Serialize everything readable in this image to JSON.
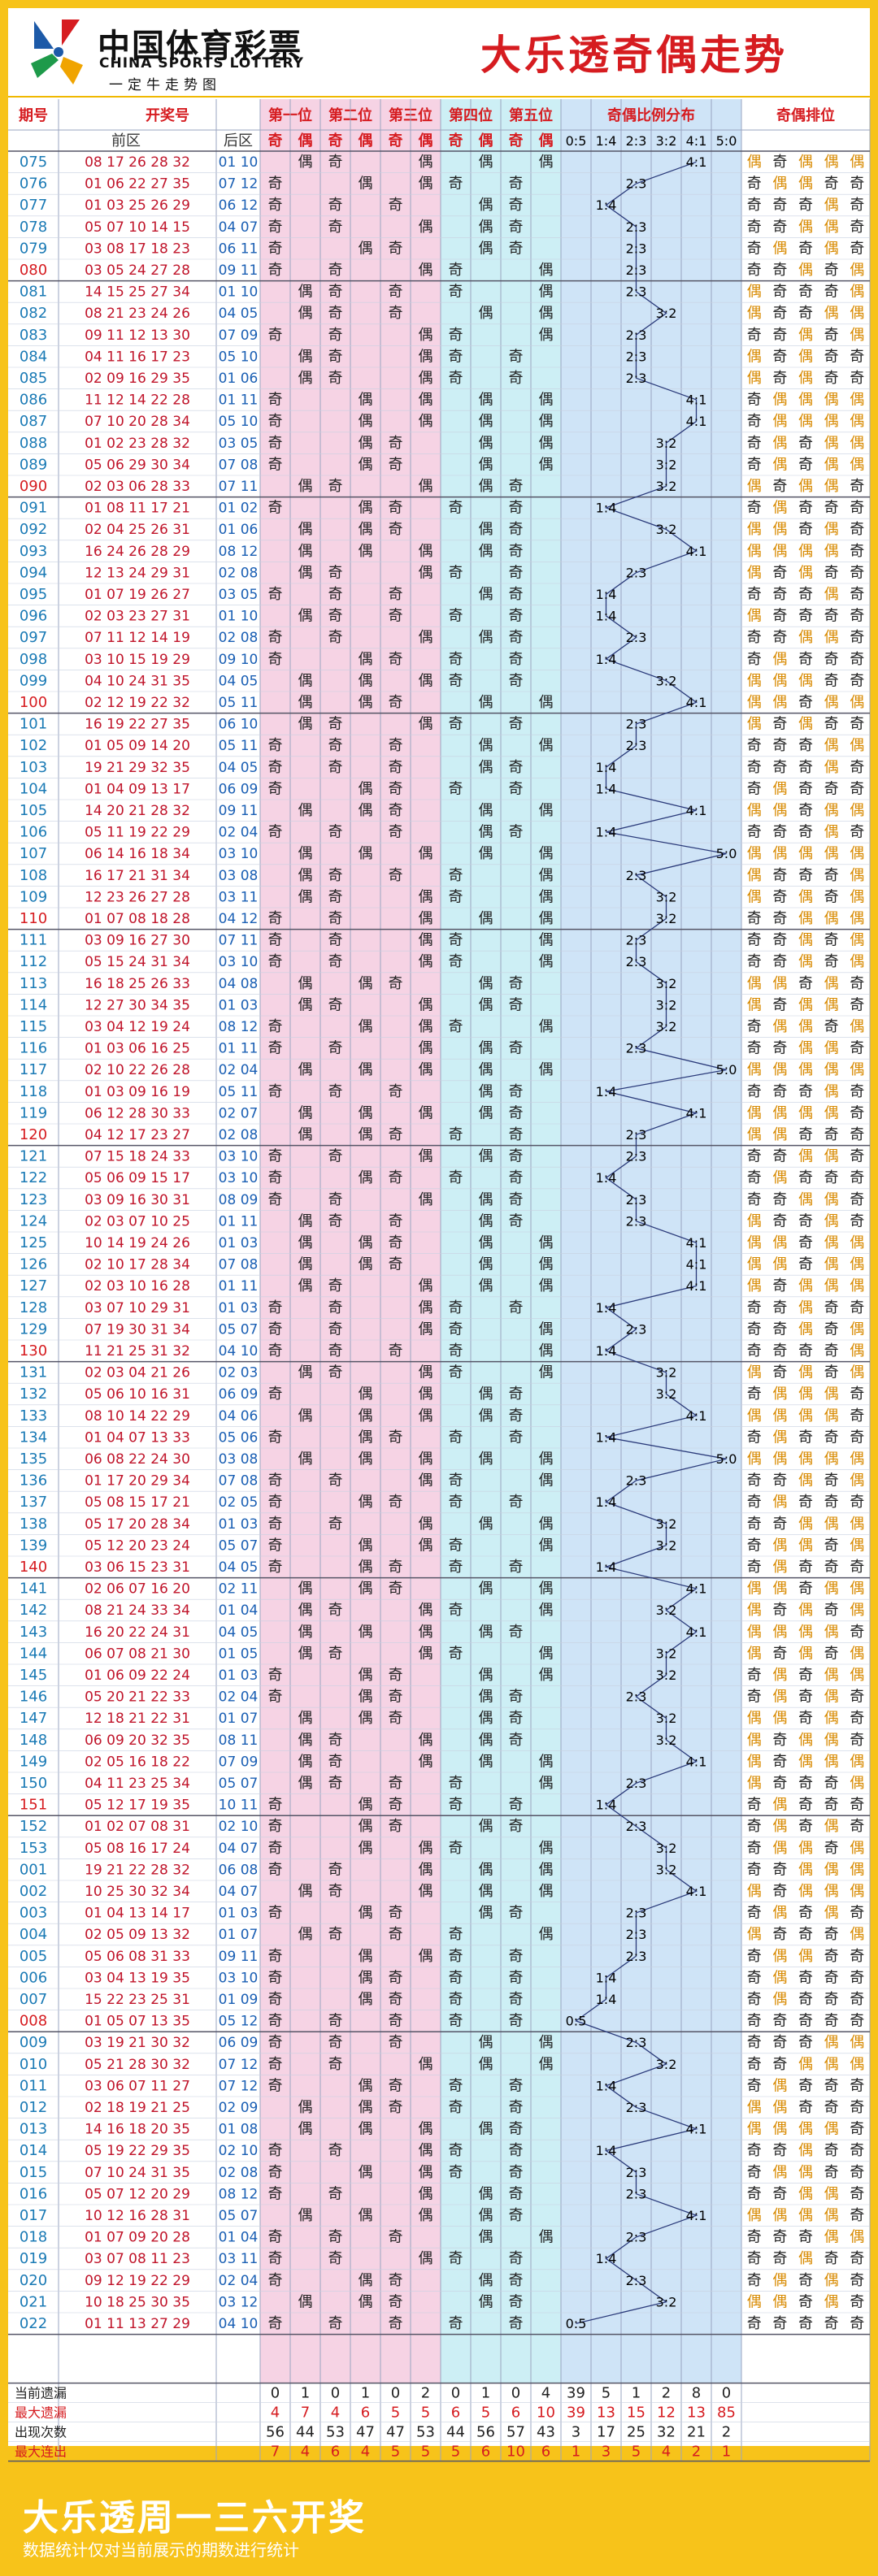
{
  "header": {
    "logo_cn": "中国体育彩票",
    "logo_en": "CHINA SPORTS LOTTERY",
    "logo_slogan": "一定牛走势图",
    "title": "大乐透奇偶走势"
  },
  "columns": {
    "issue": "期号",
    "draw": "开奖号",
    "front": "前区",
    "back": "后区",
    "pos": [
      "第一位",
      "第二位",
      "第三位",
      "第四位",
      "第五位"
    ],
    "odd": "奇",
    "even": "偶",
    "ratio_title": "奇偶比例分布",
    "ratios": [
      "0:5",
      "1:4",
      "2:3",
      "3:2",
      "4:1",
      "5:0"
    ],
    "order_title": "奇偶排位"
  },
  "rows": [
    [
      "075",
      "08 17 26 28 32",
      "01 10"
    ],
    [
      "076",
      "01 06 22 27 35",
      "07 12"
    ],
    [
      "077",
      "01 03 25 26 29",
      "06 12"
    ],
    [
      "078",
      "05 07 10 14 15",
      "04 07"
    ],
    [
      "079",
      "03 08 17 18 23",
      "06 11"
    ],
    [
      "080",
      "03 05 24 27 28",
      "09 11"
    ],
    [
      "081",
      "14 15 25 27 34",
      "01 10"
    ],
    [
      "082",
      "08 21 23 24 26",
      "04 05"
    ],
    [
      "083",
      "09 11 12 13 30",
      "07 09"
    ],
    [
      "084",
      "04 11 16 17 23",
      "05 10"
    ],
    [
      "085",
      "02 09 16 29 35",
      "01 06"
    ],
    [
      "086",
      "11 12 14 22 28",
      "01 11"
    ],
    [
      "087",
      "07 10 20 28 34",
      "05 10"
    ],
    [
      "088",
      "01 02 23 28 32",
      "03 05"
    ],
    [
      "089",
      "05 06 29 30 34",
      "07 08"
    ],
    [
      "090",
      "02 03 06 28 33",
      "07 11"
    ],
    [
      "091",
      "01 08 11 17 21",
      "01 02"
    ],
    [
      "092",
      "02 04 25 26 31",
      "01 06"
    ],
    [
      "093",
      "16 24 26 28 29",
      "08 12"
    ],
    [
      "094",
      "12 13 24 29 31",
      "02 08"
    ],
    [
      "095",
      "01 07 19 26 27",
      "03 05"
    ],
    [
      "096",
      "02 03 23 27 31",
      "01 10"
    ],
    [
      "097",
      "07 11 12 14 19",
      "02 08"
    ],
    [
      "098",
      "03 10 15 19 29",
      "09 10"
    ],
    [
      "099",
      "04 10 24 31 35",
      "04 05"
    ],
    [
      "100",
      "02 12 19 22 32",
      "05 11"
    ],
    [
      "101",
      "16 19 22 27 35",
      "06 10"
    ],
    [
      "102",
      "01 05 09 14 20",
      "05 11"
    ],
    [
      "103",
      "19 21 29 32 35",
      "04 05"
    ],
    [
      "104",
      "01 04 09 13 17",
      "06 09"
    ],
    [
      "105",
      "14 20 21 28 32",
      "09 11"
    ],
    [
      "106",
      "05 11 19 22 29",
      "02 04"
    ],
    [
      "107",
      "06 14 16 18 34",
      "03 10"
    ],
    [
      "108",
      "16 17 21 31 34",
      "03 08"
    ],
    [
      "109",
      "12 23 26 27 28",
      "03 11"
    ],
    [
      "110",
      "01 07 08 18 28",
      "04 12"
    ],
    [
      "111",
      "03 09 16 27 30",
      "07 11"
    ],
    [
      "112",
      "05 15 24 31 34",
      "03 10"
    ],
    [
      "113",
      "16 18 25 26 33",
      "04 08"
    ],
    [
      "114",
      "12 27 30 34 35",
      "01 03"
    ],
    [
      "115",
      "03 04 12 19 24",
      "08 12"
    ],
    [
      "116",
      "01 03 06 16 25",
      "01 11"
    ],
    [
      "117",
      "02 10 22 26 28",
      "02 04"
    ],
    [
      "118",
      "01 03 09 16 19",
      "05 11"
    ],
    [
      "119",
      "06 12 28 30 33",
      "02 07"
    ],
    [
      "120",
      "04 12 17 23 27",
      "02 08"
    ],
    [
      "121",
      "07 15 18 24 33",
      "03 10"
    ],
    [
      "122",
      "05 06 09 15 17",
      "03 10"
    ],
    [
      "123",
      "03 09 16 30 31",
      "08 09"
    ],
    [
      "124",
      "02 03 07 10 25",
      "01 11"
    ],
    [
      "125",
      "10 14 19 24 26",
      "01 03"
    ],
    [
      "126",
      "02 10 17 28 34",
      "07 08"
    ],
    [
      "127",
      "02 03 10 16 28",
      "01 11"
    ],
    [
      "128",
      "03 07 10 29 31",
      "01 03"
    ],
    [
      "129",
      "07 19 30 31 34",
      "05 07"
    ],
    [
      "130",
      "11 21 25 31 32",
      "04 10"
    ],
    [
      "131",
      "02 03 04 21 26",
      "02 03"
    ],
    [
      "132",
      "05 06 10 16 31",
      "06 09"
    ],
    [
      "133",
      "08 10 14 22 29",
      "04 06"
    ],
    [
      "134",
      "01 04 07 13 33",
      "05 06"
    ],
    [
      "135",
      "06 08 22 24 30",
      "03 08"
    ],
    [
      "136",
      "01 17 20 29 34",
      "07 08"
    ],
    [
      "137",
      "05 08 15 17 21",
      "02 05"
    ],
    [
      "138",
      "05 17 20 28 34",
      "01 03"
    ],
    [
      "139",
      "05 12 20 23 24",
      "05 07"
    ],
    [
      "140",
      "03 06 15 23 31",
      "04 05"
    ],
    [
      "141",
      "02 06 07 16 20",
      "02 11"
    ],
    [
      "142",
      "08 21 24 33 34",
      "01 04"
    ],
    [
      "143",
      "16 20 22 24 31",
      "04 05"
    ],
    [
      "144",
      "06 07 08 21 30",
      "01 05"
    ],
    [
      "145",
      "01 06 09 22 24",
      "01 03"
    ],
    [
      "146",
      "05 20 21 22 33",
      "02 04"
    ],
    [
      "147",
      "12 18 21 22 31",
      "01 07"
    ],
    [
      "148",
      "06 09 20 32 35",
      "08 11"
    ],
    [
      "149",
      "02 05 16 18 22",
      "07 09"
    ],
    [
      "150",
      "04 11 23 25 34",
      "05 07"
    ],
    [
      "151",
      "05 12 17 19 35",
      "10 11"
    ],
    [
      "152",
      "01 02 07 08 31",
      "02 10"
    ],
    [
      "153",
      "05 08 16 17 24",
      "04 07"
    ],
    [
      "001",
      "19 21 22 28 32",
      "06 08"
    ],
    [
      "002",
      "10 25 30 32 34",
      "04 07"
    ],
    [
      "003",
      "01 04 13 14 17",
      "01 03"
    ],
    [
      "004",
      "02 05 09 13 32",
      "01 07"
    ],
    [
      "005",
      "05 06 08 31 33",
      "09 11"
    ],
    [
      "006",
      "03 04 13 19 35",
      "03 10"
    ],
    [
      "007",
      "15 22 23 25 31",
      "01 09"
    ],
    [
      "008",
      "01 05 07 13 35",
      "05 12"
    ],
    [
      "009",
      "03 19 21 30 32",
      "06 09"
    ],
    [
      "010",
      "05 21 28 30 32",
      "07 12"
    ],
    [
      "011",
      "03 06 07 11 27",
      "07 12"
    ],
    [
      "012",
      "02 18 19 21 25",
      "02 09"
    ],
    [
      "013",
      "14 16 18 20 35",
      "01 08"
    ],
    [
      "014",
      "05 19 22 29 35",
      "02 10"
    ],
    [
      "015",
      "07 10 24 31 35",
      "02 08"
    ],
    [
      "016",
      "05 07 12 20 29",
      "08 12"
    ],
    [
      "017",
      "10 12 16 28 31",
      "05 07"
    ],
    [
      "018",
      "01 07 09 20 28",
      "01 04"
    ],
    [
      "019",
      "03 07 08 11 23",
      "03 11"
    ],
    [
      "020",
      "09 12 19 22 29",
      "02 04"
    ],
    [
      "021",
      "10 18 25 30 35",
      "03 12"
    ],
    [
      "022",
      "01 11 13 27 29",
      "04 10"
    ]
  ],
  "stats": [
    {
      "label": "当前遗漏",
      "values": [
        0,
        1,
        0,
        1,
        0,
        2,
        0,
        1,
        0,
        4,
        39,
        5,
        1,
        2,
        8,
        0
      ]
    },
    {
      "label": "最大遗漏",
      "values": [
        4,
        7,
        4,
        6,
        5,
        5,
        6,
        5,
        6,
        10,
        39,
        13,
        15,
        12,
        13,
        85
      ]
    },
    {
      "label": "出现次数",
      "values": [
        56,
        44,
        53,
        47,
        47,
        53,
        44,
        56,
        57,
        43,
        3,
        17,
        25,
        32,
        21,
        2
      ]
    },
    {
      "label": "最大连出",
      "values": [
        7,
        4,
        6,
        4,
        5,
        5,
        5,
        6,
        10,
        6,
        1,
        3,
        5,
        4,
        2,
        1
      ]
    }
  ],
  "footer": {
    "big": "大乐透周一三六开奖",
    "small": "数据统计仅对当前展示的期数进行统计"
  },
  "colors": {
    "odd": "#222222",
    "even": "#222222",
    "issue_blue": "#1a7ab5",
    "issue_red": "#d61c20",
    "pos_pink": "#f6d3e4",
    "pos_cyan": "#cdeff5",
    "ratio_blue": "#cfe4f7",
    "order_odd": "#222222",
    "order_even": "#d88a00"
  }
}
